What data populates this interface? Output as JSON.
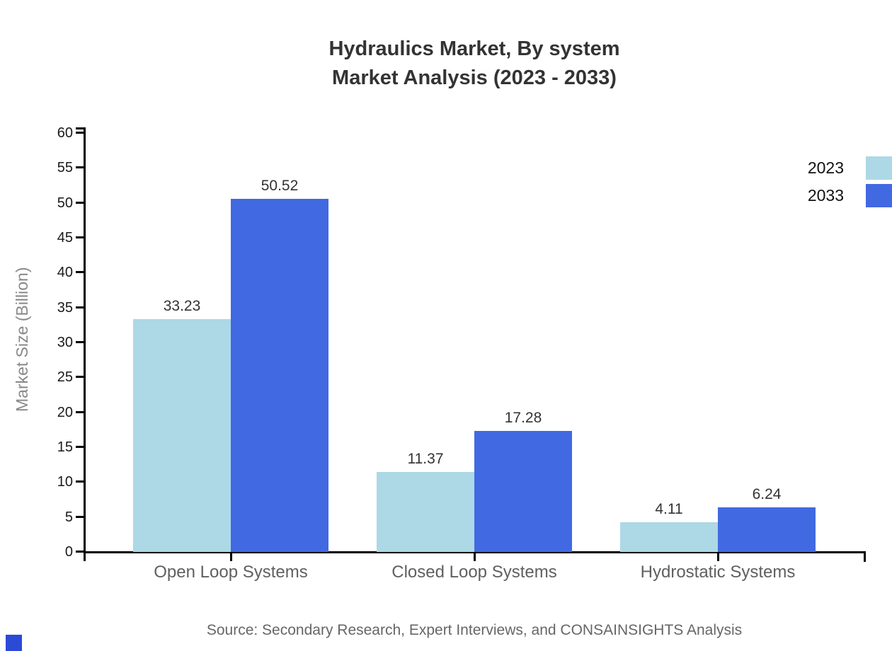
{
  "window": {
    "background": "#ffffff"
  },
  "title": {
    "line1": "Hydraulics Market, By system",
    "line2": "Market Analysis (2023 - 2033)"
  },
  "chart_data": {
    "type": "bar",
    "title": "Hydraulics Market, By system — Market Analysis (2023 - 2033)",
    "categories": [
      "Open Loop Systems",
      "Closed Loop Systems",
      "Hydrostatic Systems"
    ],
    "series": [
      {
        "name": "2023",
        "color": "#ADD8E6",
        "values": [
          33.23,
          11.37,
          4.11
        ]
      },
      {
        "name": "2033",
        "color": "#4169E1",
        "values": [
          50.52,
          17.28,
          6.24
        ]
      }
    ],
    "xlabel": "",
    "ylabel": "Market Size (Billion)",
    "ylim": [
      0,
      60
    ],
    "ytick_step": 5,
    "yticks": [
      0,
      5,
      10,
      15,
      20,
      25,
      30,
      35,
      40,
      45,
      50,
      55,
      60
    ],
    "grid": false,
    "legend_position": "top-right",
    "value_label_decimals": 2
  },
  "legend": {
    "items": [
      {
        "label": "2023",
        "color": "#ADD8E6"
      },
      {
        "label": "2033",
        "color": "#4169E1"
      }
    ]
  },
  "footer": {
    "source": "Source: Secondary Research, Expert Interviews, and CONSAINSIGHTS Analysis"
  },
  "colors": {
    "axis": "#000000",
    "title_text": "#333333",
    "tick_label": "#1a1a1a",
    "category_label": "#606060",
    "value_label": "#333333",
    "ylabel_text": "#888888",
    "source_text": "#666666",
    "corner_mark": "#2b4bd7"
  }
}
